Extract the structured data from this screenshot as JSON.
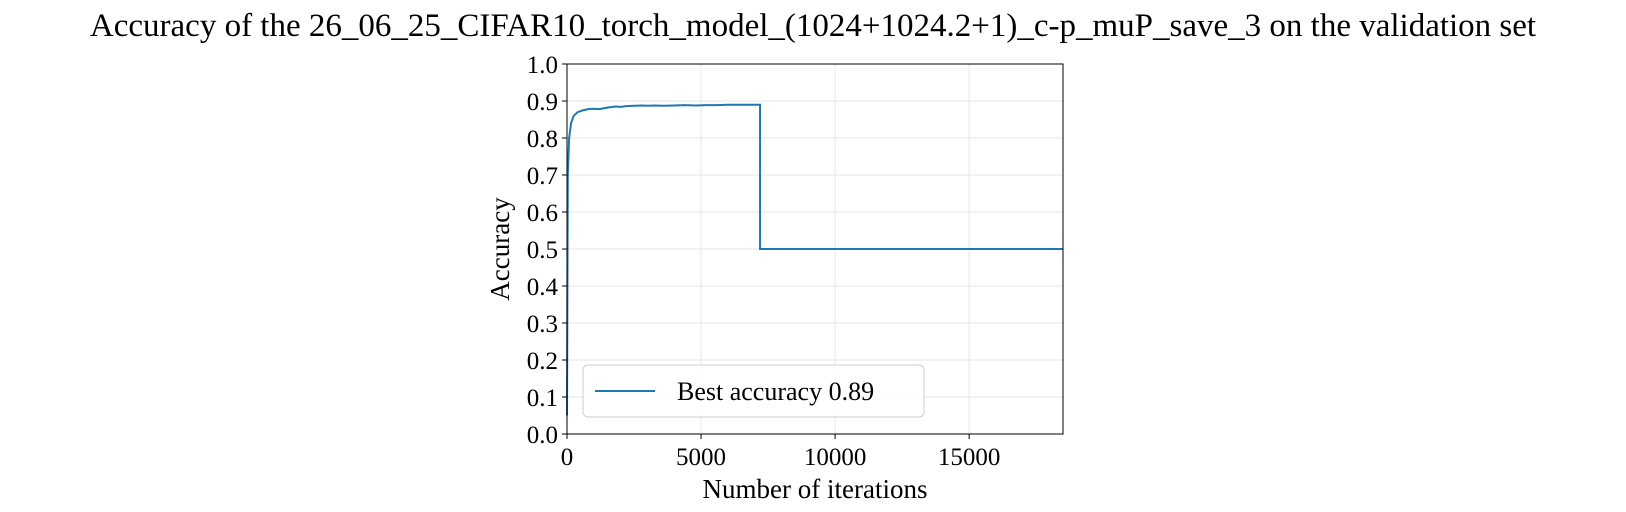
{
  "chart_data": {
    "type": "line",
    "title": "Accuracy of the 26_06_25_CIFAR10_torch_model_(1024+1024.2+1)_c-p_muP_save_3 on the validation set",
    "xlabel": "Number of iterations",
    "ylabel": "Accuracy",
    "xlim": [
      0,
      18500
    ],
    "ylim": [
      0.0,
      1.0
    ],
    "xticks": [
      0,
      5000,
      10000,
      15000
    ],
    "xtick_labels": [
      "0",
      "5000",
      "10000",
      "15000"
    ],
    "yticks": [
      0.0,
      0.1,
      0.2,
      0.3,
      0.4,
      0.5,
      0.6,
      0.7,
      0.8,
      0.9,
      1.0
    ],
    "ytick_labels": [
      "0.0",
      "0.1",
      "0.2",
      "0.3",
      "0.4",
      "0.5",
      "0.6",
      "0.7",
      "0.8",
      "0.9",
      "1.0"
    ],
    "grid": true,
    "legend_position": "bottom-left",
    "series": [
      {
        "name": "Best accuracy 0.89",
        "color": "#1f77b4",
        "x": [
          0,
          30,
          80,
          150,
          250,
          400,
          600,
          800,
          1000,
          1200,
          1500,
          1800,
          2000,
          2200,
          2500,
          2800,
          3000,
          3300,
          3600,
          4000,
          4400,
          4800,
          5200,
          5600,
          6000,
          6400,
          6800,
          7200,
          7201,
          18500
        ],
        "y": [
          0.05,
          0.7,
          0.8,
          0.84,
          0.86,
          0.87,
          0.875,
          0.878,
          0.879,
          0.878,
          0.882,
          0.885,
          0.884,
          0.886,
          0.887,
          0.888,
          0.887,
          0.888,
          0.887,
          0.888,
          0.889,
          0.888,
          0.889,
          0.889,
          0.89,
          0.89,
          0.89,
          0.89,
          0.5,
          0.5
        ]
      }
    ]
  }
}
